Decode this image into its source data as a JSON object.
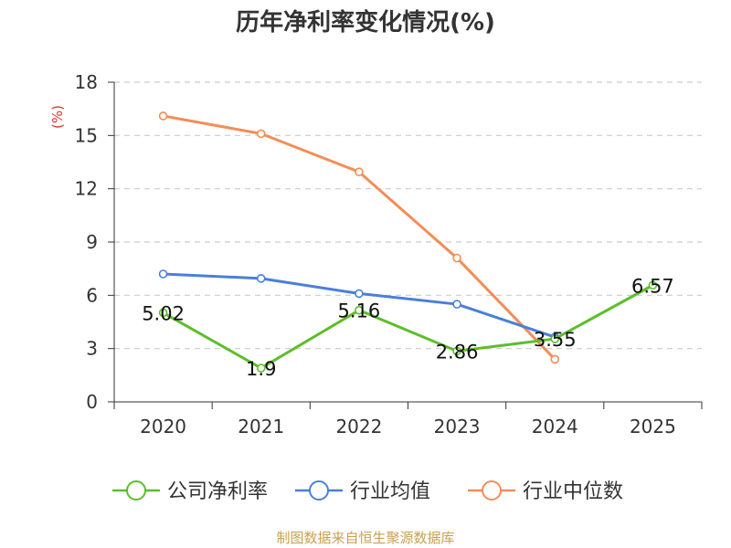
{
  "chart_data": {
    "type": "line",
    "title": "历年净利率变化情况(%)",
    "ylabel": "(%)",
    "xlabel": "",
    "categories": [
      "2020",
      "2021",
      "2022",
      "2023",
      "2024",
      "2025"
    ],
    "ylim": [
      0,
      18
    ],
    "yticks": [
      0,
      3,
      6,
      9,
      12,
      15,
      18
    ],
    "grid": true,
    "legend_position": "bottom",
    "series": [
      {
        "name": "公司净利率",
        "color": "#5dbe2b",
        "values": [
          5.02,
          1.9,
          5.16,
          2.86,
          3.55,
          6.57
        ],
        "labels": [
          "5.02",
          "1.9",
          "5.16",
          "2.86",
          "3.55",
          "6.57"
        ]
      },
      {
        "name": "行业均值",
        "color": "#4a7fdb",
        "values": [
          7.2,
          6.95,
          6.1,
          5.5,
          3.65,
          null
        ]
      },
      {
        "name": "行业中位数",
        "color": "#f58c56",
        "values": [
          16.1,
          15.1,
          12.95,
          8.1,
          2.4,
          null
        ]
      }
    ]
  },
  "source": "制图数据来自恒生聚源数据库"
}
